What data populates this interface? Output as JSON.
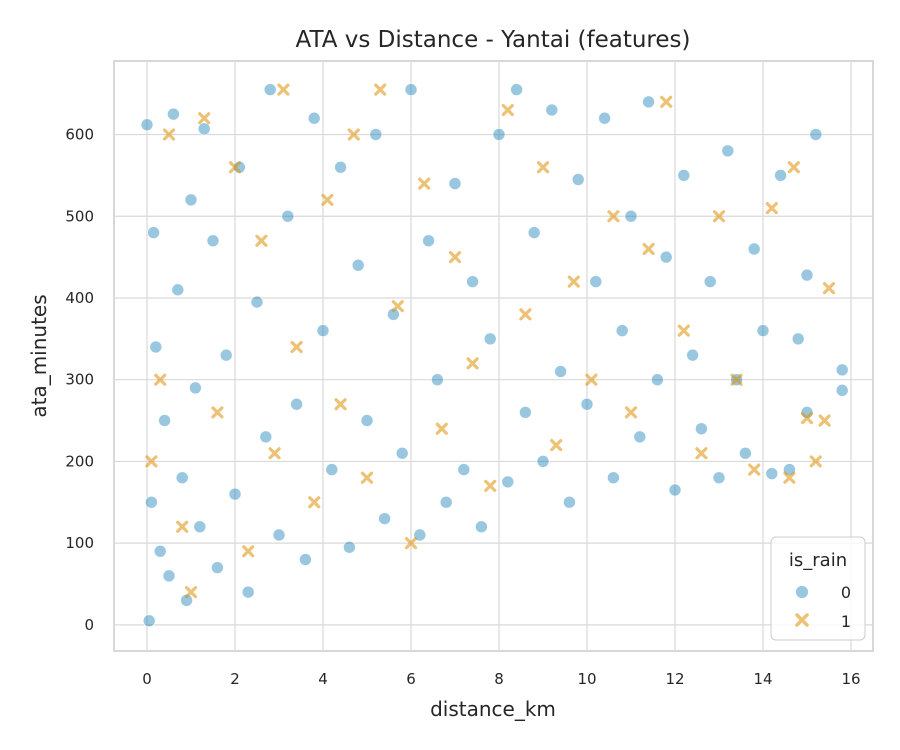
{
  "chart_data": {
    "type": "scatter",
    "title": "ATA vs Distance - Yantai (features)",
    "xlabel": "distance_km",
    "ylabel": "ata_minutes",
    "xlim": [
      -0.75,
      16.5
    ],
    "ylim": [
      -32,
      690
    ],
    "xticks": [
      0,
      2,
      4,
      6,
      8,
      10,
      12,
      14,
      16
    ],
    "yticks": [
      0,
      100,
      200,
      300,
      400,
      500,
      600
    ],
    "grid": true,
    "legend": {
      "title": "is_rain",
      "placement": "bottom-right"
    },
    "series": [
      {
        "name": "0",
        "marker": "circle",
        "color": "#0173b2",
        "alpha": 0.4,
        "points": [
          [
            0.0,
            612
          ],
          [
            0.05,
            5
          ],
          [
            0.1,
            150
          ],
          [
            0.15,
            480
          ],
          [
            0.2,
            340
          ],
          [
            0.3,
            90
          ],
          [
            0.4,
            250
          ],
          [
            0.5,
            60
          ],
          [
            0.6,
            625
          ],
          [
            0.7,
            410
          ],
          [
            0.8,
            180
          ],
          [
            0.9,
            30
          ],
          [
            1.0,
            520
          ],
          [
            1.1,
            290
          ],
          [
            1.2,
            120
          ],
          [
            1.3,
            607
          ],
          [
            1.5,
            470
          ],
          [
            1.6,
            70
          ],
          [
            1.8,
            330
          ],
          [
            2.0,
            160
          ],
          [
            2.1,
            560
          ],
          [
            2.3,
            40
          ],
          [
            2.5,
            395
          ],
          [
            2.7,
            230
          ],
          [
            2.8,
            655
          ],
          [
            3.0,
            110
          ],
          [
            3.2,
            500
          ],
          [
            3.4,
            270
          ],
          [
            3.6,
            80
          ],
          [
            3.8,
            620
          ],
          [
            4.0,
            360
          ],
          [
            4.2,
            190
          ],
          [
            4.4,
            560
          ],
          [
            4.6,
            95
          ],
          [
            4.8,
            440
          ],
          [
            5.0,
            250
          ],
          [
            5.2,
            600
          ],
          [
            5.4,
            130
          ],
          [
            5.6,
            380
          ],
          [
            5.8,
            210
          ],
          [
            6.0,
            655
          ],
          [
            6.2,
            110
          ],
          [
            6.4,
            470
          ],
          [
            6.6,
            300
          ],
          [
            6.8,
            150
          ],
          [
            7.0,
            540
          ],
          [
            7.2,
            190
          ],
          [
            7.4,
            420
          ],
          [
            7.6,
            120
          ],
          [
            7.8,
            350
          ],
          [
            8.0,
            600
          ],
          [
            8.2,
            175
          ],
          [
            8.4,
            655
          ],
          [
            8.6,
            260
          ],
          [
            8.8,
            480
          ],
          [
            9.0,
            200
          ],
          [
            9.2,
            630
          ],
          [
            9.4,
            310
          ],
          [
            9.6,
            150
          ],
          [
            9.8,
            545
          ],
          [
            10.0,
            270
          ],
          [
            10.2,
            420
          ],
          [
            10.4,
            620
          ],
          [
            10.6,
            180
          ],
          [
            10.8,
            360
          ],
          [
            11.0,
            500
          ],
          [
            11.2,
            230
          ],
          [
            11.4,
            640
          ],
          [
            11.6,
            300
          ],
          [
            11.8,
            450
          ],
          [
            12.0,
            165
          ],
          [
            12.2,
            550
          ],
          [
            12.4,
            330
          ],
          [
            12.6,
            240
          ],
          [
            12.8,
            420
          ],
          [
            13.0,
            180
          ],
          [
            13.2,
            580
          ],
          [
            13.4,
            300
          ],
          [
            13.6,
            210
          ],
          [
            13.8,
            460
          ],
          [
            14.0,
            360
          ],
          [
            14.2,
            185
          ],
          [
            14.4,
            550
          ],
          [
            14.6,
            190
          ],
          [
            14.8,
            350
          ],
          [
            15.0,
            428
          ],
          [
            15.2,
            600
          ],
          [
            15.8,
            312
          ],
          [
            15.8,
            287
          ],
          [
            15.0,
            260
          ]
        ]
      },
      {
        "name": "1",
        "marker": "x",
        "color": "#de8f05",
        "alpha": 0.45,
        "points": [
          [
            0.1,
            200
          ],
          [
            0.3,
            300
          ],
          [
            0.5,
            600
          ],
          [
            0.8,
            120
          ],
          [
            1.0,
            40
          ],
          [
            1.3,
            620
          ],
          [
            1.6,
            260
          ],
          [
            2.0,
            560
          ],
          [
            2.3,
            90
          ],
          [
            2.6,
            470
          ],
          [
            2.9,
            210
          ],
          [
            3.1,
            655
          ],
          [
            3.4,
            340
          ],
          [
            3.8,
            150
          ],
          [
            4.1,
            520
          ],
          [
            4.4,
            270
          ],
          [
            4.7,
            600
          ],
          [
            5.0,
            180
          ],
          [
            5.3,
            655
          ],
          [
            5.7,
            390
          ],
          [
            6.0,
            100
          ],
          [
            6.3,
            540
          ],
          [
            6.7,
            240
          ],
          [
            7.0,
            450
          ],
          [
            7.4,
            320
          ],
          [
            7.8,
            170
          ],
          [
            8.2,
            630
          ],
          [
            8.6,
            380
          ],
          [
            9.0,
            560
          ],
          [
            9.3,
            220
          ],
          [
            9.7,
            420
          ],
          [
            10.1,
            300
          ],
          [
            10.6,
            500
          ],
          [
            11.0,
            260
          ],
          [
            11.4,
            460
          ],
          [
            11.8,
            640
          ],
          [
            12.2,
            360
          ],
          [
            12.6,
            210
          ],
          [
            13.0,
            500
          ],
          [
            13.4,
            300
          ],
          [
            13.8,
            190
          ],
          [
            14.2,
            510
          ],
          [
            14.6,
            180
          ],
          [
            14.7,
            560
          ],
          [
            15.0,
            253
          ],
          [
            15.2,
            200
          ],
          [
            15.4,
            250
          ],
          [
            15.5,
            412
          ]
        ]
      }
    ]
  }
}
